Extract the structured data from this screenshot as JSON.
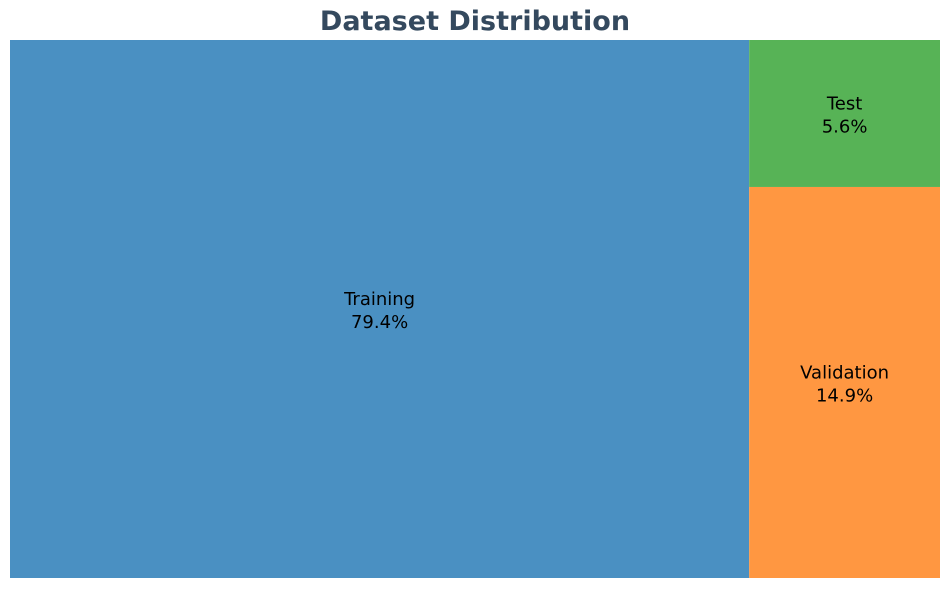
{
  "chart_data": {
    "type": "treemap",
    "title": "Dataset Distribution",
    "items": [
      {
        "label": "Training",
        "percent_label": "79.4%",
        "value": 79.4,
        "color": "#4a90c2"
      },
      {
        "label": "Validation",
        "percent_label": "14.9%",
        "value": 14.9,
        "color": "#ff9741"
      },
      {
        "label": "Test",
        "percent_label": "5.6%",
        "value": 5.6,
        "color": "#57b356"
      }
    ]
  }
}
